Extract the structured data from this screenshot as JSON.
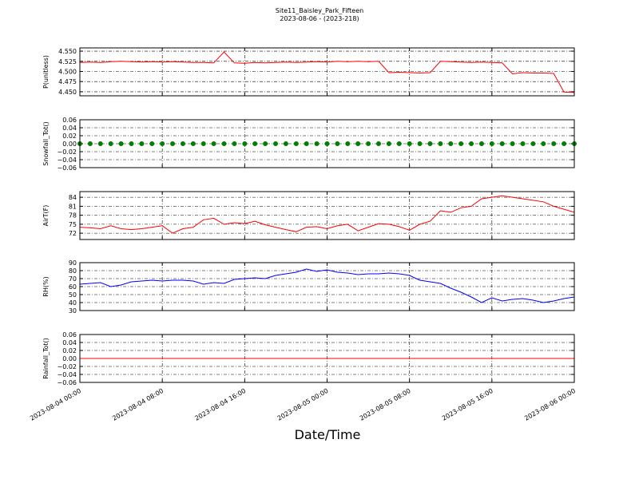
{
  "title": "Site11_Baisley_Park_Fifteen",
  "subtitle": "2023-08-06 - (2023-218)",
  "xlabel": "Date/Time",
  "chart_data": [
    {
      "type": "line",
      "ylabel": "P(unitless)",
      "color": "#ff0000",
      "x": [
        "2023-08-04 00:00",
        "2023-08-04 01:00",
        "2023-08-04 02:00",
        "2023-08-04 03:00",
        "2023-08-04 04:00",
        "2023-08-04 05:00",
        "2023-08-04 06:00",
        "2023-08-04 07:00",
        "2023-08-04 08:00",
        "2023-08-04 09:00",
        "2023-08-04 10:00",
        "2023-08-04 11:00",
        "2023-08-04 12:00",
        "2023-08-04 13:00",
        "2023-08-04 14:00",
        "2023-08-04 15:00",
        "2023-08-04 16:00",
        "2023-08-04 17:00",
        "2023-08-04 18:00",
        "2023-08-04 19:00",
        "2023-08-04 20:00",
        "2023-08-04 21:00",
        "2023-08-04 22:00",
        "2023-08-04 23:00",
        "2023-08-05 00:00",
        "2023-08-05 01:00",
        "2023-08-05 02:00",
        "2023-08-05 03:00",
        "2023-08-05 04:00",
        "2023-08-05 05:00",
        "2023-08-05 06:00",
        "2023-08-05 07:00",
        "2023-08-05 08:00",
        "2023-08-05 09:00",
        "2023-08-05 10:00",
        "2023-08-05 11:00",
        "2023-08-05 12:00",
        "2023-08-05 13:00",
        "2023-08-05 14:00",
        "2023-08-05 15:00",
        "2023-08-05 16:00",
        "2023-08-05 17:00",
        "2023-08-05 18:00",
        "2023-08-05 19:00",
        "2023-08-05 20:00",
        "2023-08-05 21:00",
        "2023-08-05 22:00",
        "2023-08-05 23:00",
        "2023-08-06 00:00"
      ],
      "values": [
        4.522,
        4.523,
        4.522,
        4.524,
        4.525,
        4.524,
        4.523,
        4.524,
        4.523,
        4.524,
        4.523,
        4.522,
        4.522,
        4.521,
        4.548,
        4.521,
        4.52,
        4.522,
        4.521,
        4.522,
        4.523,
        4.522,
        4.523,
        4.524,
        4.523,
        4.525,
        4.524,
        4.525,
        4.524,
        4.525,
        4.497,
        4.498,
        4.497,
        4.496,
        4.497,
        4.525,
        4.524,
        4.523,
        4.522,
        4.523,
        4.522,
        4.521,
        4.494,
        4.497,
        4.496,
        4.496,
        4.495,
        4.449,
        4.448
      ],
      "xlim": [
        "2023-08-04 00:00",
        "2023-08-06 00:00"
      ],
      "xticks": [
        "2023-08-04 00:00",
        "2023-08-04 08:00",
        "2023-08-04 16:00",
        "2023-08-05 00:00",
        "2023-08-05 08:00",
        "2023-08-05 16:00",
        "2023-08-06 00:00"
      ],
      "ylim": [
        4.44,
        4.558
      ],
      "yticks": [
        {
          "value": 4.45,
          "label": "4.450"
        },
        {
          "value": 4.475,
          "label": "4.475"
        },
        {
          "value": 4.5,
          "label": "4.500"
        },
        {
          "value": 4.525,
          "label": "4.525"
        },
        {
          "value": 4.55,
          "label": "4.550"
        }
      ],
      "grid": true
    },
    {
      "type": "scatter",
      "ylabel": "Snowfall_Tot()",
      "color": "#008000",
      "x": [
        "2023-08-04 00:00",
        "2023-08-04 01:00",
        "2023-08-04 02:00",
        "2023-08-04 03:00",
        "2023-08-04 04:00",
        "2023-08-04 05:00",
        "2023-08-04 06:00",
        "2023-08-04 07:00",
        "2023-08-04 08:00",
        "2023-08-04 09:00",
        "2023-08-04 10:00",
        "2023-08-04 11:00",
        "2023-08-04 12:00",
        "2023-08-04 13:00",
        "2023-08-04 14:00",
        "2023-08-04 15:00",
        "2023-08-04 16:00",
        "2023-08-04 17:00",
        "2023-08-04 18:00",
        "2023-08-04 19:00",
        "2023-08-04 20:00",
        "2023-08-04 21:00",
        "2023-08-04 22:00",
        "2023-08-04 23:00",
        "2023-08-05 00:00",
        "2023-08-05 01:00",
        "2023-08-05 02:00",
        "2023-08-05 03:00",
        "2023-08-05 04:00",
        "2023-08-05 05:00",
        "2023-08-05 06:00",
        "2023-08-05 07:00",
        "2023-08-05 08:00",
        "2023-08-05 09:00",
        "2023-08-05 10:00",
        "2023-08-05 11:00",
        "2023-08-05 12:00",
        "2023-08-05 13:00",
        "2023-08-05 14:00",
        "2023-08-05 15:00",
        "2023-08-05 16:00",
        "2023-08-05 17:00",
        "2023-08-05 18:00",
        "2023-08-05 19:00",
        "2023-08-05 20:00",
        "2023-08-05 21:00",
        "2023-08-05 22:00",
        "2023-08-05 23:00",
        "2023-08-06 00:00"
      ],
      "values": [
        0,
        0,
        0,
        0,
        0,
        0,
        0,
        0,
        0,
        0,
        0,
        0,
        0,
        0,
        0,
        0,
        0,
        0,
        0,
        0,
        0,
        0,
        0,
        0,
        0,
        0,
        0,
        0,
        0,
        0,
        0,
        0,
        0,
        0,
        0,
        0,
        0,
        0,
        0,
        0,
        0,
        0,
        0,
        0,
        0,
        0,
        0,
        0,
        0
      ],
      "xlim": [
        "2023-08-04 00:00",
        "2023-08-06 00:00"
      ],
      "xticks": [
        "2023-08-04 00:00",
        "2023-08-04 08:00",
        "2023-08-04 16:00",
        "2023-08-05 00:00",
        "2023-08-05 08:00",
        "2023-08-05 16:00",
        "2023-08-06 00:00"
      ],
      "ylim": [
        -0.06,
        0.06
      ],
      "yticks": [
        {
          "value": -0.06,
          "label": "−0.06"
        },
        {
          "value": -0.04,
          "label": "−0.04"
        },
        {
          "value": -0.02,
          "label": "−0.02"
        },
        {
          "value": 0,
          "label": "0.00"
        },
        {
          "value": 0.02,
          "label": "0.02"
        },
        {
          "value": 0.04,
          "label": "0.04"
        },
        {
          "value": 0.06,
          "label": "0.06"
        }
      ],
      "grid": true
    },
    {
      "type": "line",
      "ylabel": "AirT(F)",
      "color": "#ff0000",
      "x": [
        "2023-08-04 00:00",
        "2023-08-04 01:00",
        "2023-08-04 02:00",
        "2023-08-04 03:00",
        "2023-08-04 04:00",
        "2023-08-04 05:00",
        "2023-08-04 06:00",
        "2023-08-04 07:00",
        "2023-08-04 08:00",
        "2023-08-04 09:00",
        "2023-08-04 10:00",
        "2023-08-04 11:00",
        "2023-08-04 12:00",
        "2023-08-04 13:00",
        "2023-08-04 14:00",
        "2023-08-04 15:00",
        "2023-08-04 16:00",
        "2023-08-04 17:00",
        "2023-08-04 18:00",
        "2023-08-04 19:00",
        "2023-08-04 20:00",
        "2023-08-04 21:00",
        "2023-08-04 22:00",
        "2023-08-04 23:00",
        "2023-08-05 00:00",
        "2023-08-05 01:00",
        "2023-08-05 02:00",
        "2023-08-05 03:00",
        "2023-08-05 04:00",
        "2023-08-05 05:00",
        "2023-08-05 06:00",
        "2023-08-05 07:00",
        "2023-08-05 08:00",
        "2023-08-05 09:00",
        "2023-08-05 10:00",
        "2023-08-05 11:00",
        "2023-08-05 12:00",
        "2023-08-05 13:00",
        "2023-08-05 14:00",
        "2023-08-05 15:00",
        "2023-08-05 16:00",
        "2023-08-05 17:00",
        "2023-08-05 18:00",
        "2023-08-05 19:00",
        "2023-08-05 20:00",
        "2023-08-05 21:00",
        "2023-08-05 22:00",
        "2023-08-05 23:00",
        "2023-08-06 00:00"
      ],
      "values": [
        74,
        73.8,
        73.5,
        74.5,
        73.5,
        73.2,
        73.5,
        74,
        74.5,
        72,
        73.5,
        74,
        76.5,
        77,
        75,
        75.5,
        75.2,
        76,
        74.8,
        74,
        73.2,
        72.5,
        74,
        74.2,
        73.5,
        74.5,
        75,
        72.8,
        74,
        75.2,
        75,
        74.2,
        73,
        75,
        76,
        79.5,
        79,
        80.5,
        81,
        83.5,
        84,
        84.5,
        84,
        83.5,
        83,
        82.5,
        81,
        80,
        79
      ],
      "xlim": [
        "2023-08-04 00:00",
        "2023-08-06 00:00"
      ],
      "xticks": [
        "2023-08-04 00:00",
        "2023-08-04 08:00",
        "2023-08-04 16:00",
        "2023-08-05 00:00",
        "2023-08-05 08:00",
        "2023-08-05 16:00",
        "2023-08-06 00:00"
      ],
      "ylim": [
        69.9,
        85.9
      ],
      "yticks": [
        72,
        75,
        78,
        81,
        84
      ],
      "grid": true
    },
    {
      "type": "line",
      "ylabel": "RH(%)",
      "color": "#0000ff",
      "x": [
        "2023-08-04 00:00",
        "2023-08-04 01:00",
        "2023-08-04 02:00",
        "2023-08-04 03:00",
        "2023-08-04 04:00",
        "2023-08-04 05:00",
        "2023-08-04 06:00",
        "2023-08-04 07:00",
        "2023-08-04 08:00",
        "2023-08-04 09:00",
        "2023-08-04 10:00",
        "2023-08-04 11:00",
        "2023-08-04 12:00",
        "2023-08-04 13:00",
        "2023-08-04 14:00",
        "2023-08-04 15:00",
        "2023-08-04 16:00",
        "2023-08-04 17:00",
        "2023-08-04 18:00",
        "2023-08-04 19:00",
        "2023-08-04 20:00",
        "2023-08-04 21:00",
        "2023-08-04 22:00",
        "2023-08-04 23:00",
        "2023-08-05 00:00",
        "2023-08-05 01:00",
        "2023-08-05 02:00",
        "2023-08-05 03:00",
        "2023-08-05 04:00",
        "2023-08-05 05:00",
        "2023-08-05 06:00",
        "2023-08-05 07:00",
        "2023-08-05 08:00",
        "2023-08-05 09:00",
        "2023-08-05 10:00",
        "2023-08-05 11:00",
        "2023-08-05 12:00",
        "2023-08-05 13:00",
        "2023-08-05 14:00",
        "2023-08-05 15:00",
        "2023-08-05 16:00",
        "2023-08-05 17:00",
        "2023-08-05 18:00",
        "2023-08-05 19:00",
        "2023-08-05 20:00",
        "2023-08-05 21:00",
        "2023-08-05 22:00",
        "2023-08-05 23:00",
        "2023-08-06 00:00"
      ],
      "values": [
        63,
        64,
        65,
        60,
        62,
        66,
        67,
        68,
        67,
        68,
        68,
        67,
        63,
        65,
        64,
        69,
        70,
        71,
        70,
        74,
        76,
        78,
        82,
        79,
        81,
        78,
        77,
        75,
        76,
        76,
        77,
        76,
        74,
        68,
        66,
        64,
        58,
        53,
        47,
        40,
        46,
        42,
        44,
        45,
        43,
        40,
        42,
        45,
        47
      ],
      "xlim": [
        "2023-08-04 00:00",
        "2023-08-06 00:00"
      ],
      "xticks": [
        "2023-08-04 00:00",
        "2023-08-04 08:00",
        "2023-08-04 16:00",
        "2023-08-05 00:00",
        "2023-08-05 08:00",
        "2023-08-05 16:00",
        "2023-08-06 00:00"
      ],
      "ylim": [
        30,
        90
      ],
      "yticks": [
        30,
        40,
        50,
        60,
        70,
        80,
        90
      ],
      "grid": true
    },
    {
      "type": "line",
      "ylabel": "Rainfall_Tot()",
      "color": "#ff0000",
      "x": [
        "2023-08-04 00:00",
        "2023-08-04 01:00",
        "2023-08-04 02:00",
        "2023-08-04 03:00",
        "2023-08-04 04:00",
        "2023-08-04 05:00",
        "2023-08-04 06:00",
        "2023-08-04 07:00",
        "2023-08-04 08:00",
        "2023-08-04 09:00",
        "2023-08-04 10:00",
        "2023-08-04 11:00",
        "2023-08-04 12:00",
        "2023-08-04 13:00",
        "2023-08-04 14:00",
        "2023-08-04 15:00",
        "2023-08-04 16:00",
        "2023-08-04 17:00",
        "2023-08-04 18:00",
        "2023-08-04 19:00",
        "2023-08-04 20:00",
        "2023-08-04 21:00",
        "2023-08-04 22:00",
        "2023-08-04 23:00",
        "2023-08-05 00:00",
        "2023-08-05 01:00",
        "2023-08-05 02:00",
        "2023-08-05 03:00",
        "2023-08-05 04:00",
        "2023-08-05 05:00",
        "2023-08-05 06:00",
        "2023-08-05 07:00",
        "2023-08-05 08:00",
        "2023-08-05 09:00",
        "2023-08-05 10:00",
        "2023-08-05 11:00",
        "2023-08-05 12:00",
        "2023-08-05 13:00",
        "2023-08-05 14:00",
        "2023-08-05 15:00",
        "2023-08-05 16:00",
        "2023-08-05 17:00",
        "2023-08-05 18:00",
        "2023-08-05 19:00",
        "2023-08-05 20:00",
        "2023-08-05 21:00",
        "2023-08-05 22:00",
        "2023-08-05 23:00",
        "2023-08-06 00:00"
      ],
      "values": [
        0,
        0,
        0,
        0,
        0,
        0,
        0,
        0,
        0,
        0,
        0,
        0,
        0,
        0,
        0,
        0,
        0,
        0,
        0,
        0,
        0,
        0,
        0,
        0,
        0,
        0,
        0,
        0,
        0,
        0,
        0,
        0,
        0,
        0,
        0,
        0,
        0,
        0,
        0,
        0,
        0,
        0,
        0,
        0,
        0,
        0,
        0,
        0,
        0
      ],
      "xlim": [
        "2023-08-04 00:00",
        "2023-08-06 00:00"
      ],
      "xticks": [
        "2023-08-04 00:00",
        "2023-08-04 08:00",
        "2023-08-04 16:00",
        "2023-08-05 00:00",
        "2023-08-05 08:00",
        "2023-08-05 16:00",
        "2023-08-06 00:00"
      ],
      "ylim": [
        -0.06,
        0.06
      ],
      "yticks": [
        {
          "value": -0.06,
          "label": "−0.06"
        },
        {
          "value": -0.04,
          "label": "−0.04"
        },
        {
          "value": -0.02,
          "label": "−0.02"
        },
        {
          "value": 0,
          "label": "0.00"
        },
        {
          "value": 0.02,
          "label": "0.02"
        },
        {
          "value": 0.04,
          "label": "0.04"
        },
        {
          "value": 0.06,
          "label": "0.06"
        }
      ],
      "grid": true
    }
  ]
}
